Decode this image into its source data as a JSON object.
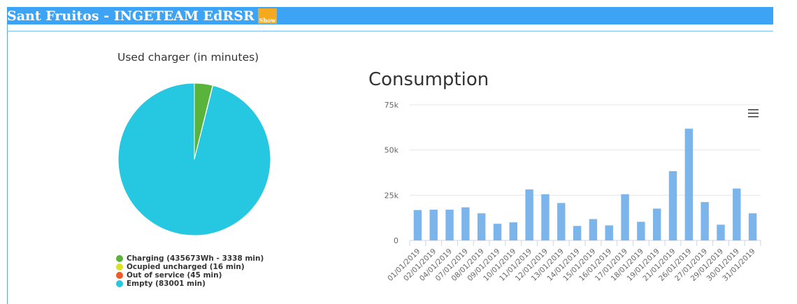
{
  "header": {
    "title": "Sant Fruitos - INGETEAM EdRSR 1",
    "show_label": "Show"
  },
  "pie": {
    "title": "Used charger (in minutes)",
    "legend": [
      {
        "label": "Charging (435673Wh - 3338 min)",
        "color": "#5ab43c"
      },
      {
        "label": "Ocupied uncharged (16 min)",
        "color": "#e0e025"
      },
      {
        "label": "Out of service (45 min)",
        "color": "#f05a28"
      },
      {
        "label": "Empty (83001 min)",
        "color": "#25c8e0"
      }
    ]
  },
  "consumption": {
    "title": "Consumption"
  },
  "chart_data": [
    {
      "type": "pie",
      "title": "Used charger (in minutes)",
      "categories": [
        "Charging (435673Wh - 3338 min)",
        "Ocupied uncharged (16 min)",
        "Out of service (45 min)",
        "Empty (83001 min)"
      ],
      "values": [
        3338,
        16,
        45,
        83001
      ],
      "colors": [
        "#5ab43c",
        "#e0e025",
        "#f05a28",
        "#25c8e0"
      ],
      "legend": "bottom"
    },
    {
      "type": "bar",
      "title": "Consumption",
      "categories": [
        "01/01/2019",
        "02/01/2019",
        "04/01/2019",
        "07/01/2019",
        "08/01/2019",
        "09/01/2019",
        "10/01/2019",
        "11/01/2019",
        "12/01/2019",
        "13/01/2019",
        "14/01/2019",
        "15/01/2019",
        "16/01/2019",
        "17/01/2019",
        "18/01/2019",
        "19/01/2019",
        "21/01/2019",
        "26/01/2019",
        "27/01/2019",
        "29/01/2019",
        "30/01/2019",
        "31/01/2019"
      ],
      "values": [
        16800,
        17000,
        17000,
        18300,
        15000,
        9200,
        10000,
        28200,
        25500,
        20700,
        8000,
        11800,
        8300,
        25500,
        10300,
        17600,
        38300,
        61800,
        21200,
        8700,
        28700,
        15000
      ],
      "ylim": [
        0,
        75000
      ],
      "yticks": [
        "0",
        "25k",
        "50k",
        "75k"
      ],
      "ytick_values": [
        0,
        25000,
        50000,
        75000
      ],
      "bar_color": "#7cb5ec",
      "grid": true
    }
  ]
}
